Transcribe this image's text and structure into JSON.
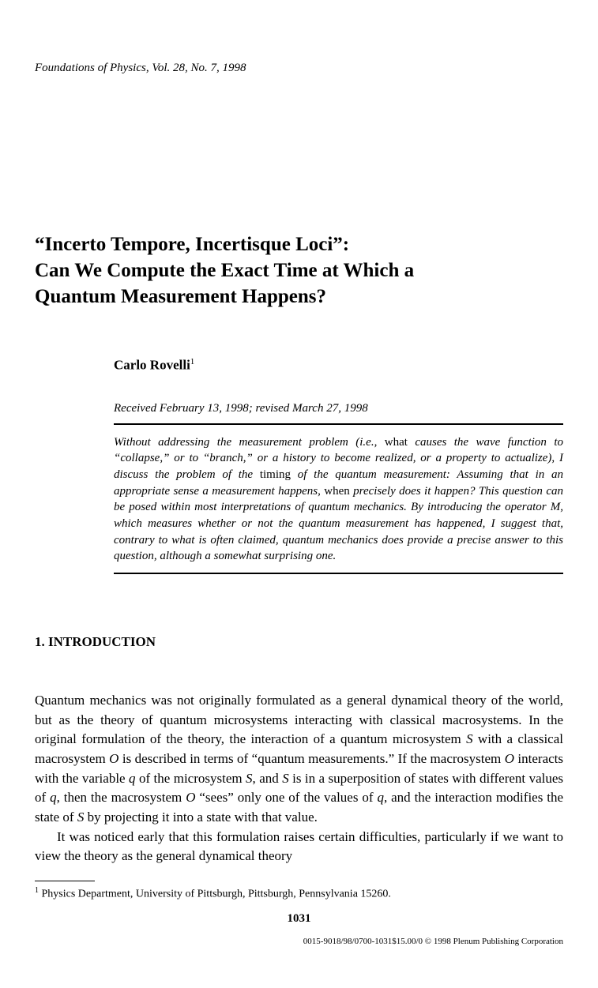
{
  "journal_header": "Foundations of Physics, Vol. 28, No. 7, 1998",
  "title_line1": "“Incerto Tempore, Incertisque Loci”:",
  "title_line2": "Can We Compute the Exact Time at Which a",
  "title_line3": "Quantum Measurement Happens?",
  "author": "Carlo Rovelli",
  "author_affil_mark": "1",
  "received": "Received February 13, 1998; revised March 27, 1998",
  "abstract_parts": {
    "p1": "Without addressing the measurement problem (i.e., ",
    "r1": "what ",
    "p2": "causes the wave function to “collapse,” or to “branch,” or a history to become realized, or a property to actualize), I discuss the problem of the ",
    "r2": "timing ",
    "p3": "of the quantum measurement: Assuming that in an appropriate sense a measurement happens, ",
    "r3": "when ",
    "p4": "precisely does it happen? This question can be posed within most interpretations of quantum mechanics. By introducing the operator M, which measures whether or not the quantum measurement has happened, I suggest that, contrary to what is often claimed, quantum mechanics does provide a precise answer to this question, although a somewhat surprising one."
  },
  "section1_head": "1.  INTRODUCTION",
  "body": {
    "p1a": "Quantum mechanics was not originally formulated as a general dynamical theory of the world, but as the theory of quantum microsystems interacting with classical macrosystems. In the original formulation of the theory, the interaction of a quantum microsystem ",
    "s": "S",
    "p1b": " with a classical macrosystem ",
    "o": "O",
    "p1c": " is described in terms of “quantum measurements.” If the macrosystem ",
    "p1d": " interacts with the variable ",
    "q": "q",
    "p1e": " of the microsystem ",
    "p1f": ", and ",
    "p1g": " is in a superposition of states with different values of ",
    "p1h": ", then the macrosystem ",
    "p1i": " “sees” only one of the values of ",
    "p1j": ", and the interaction modifies the state of ",
    "p1k": " by projecting it into a state with that value.",
    "p2": "It was noticed early that this formulation raises certain difficulties, particularly if we want to view the theory as the general dynamical theory"
  },
  "footnote_mark": "1",
  "footnote_text": " Physics Department, University of Pittsburgh, Pittsburgh, Pennsylvania 15260.",
  "page_number": "1031",
  "copyright_line": "0015-9018/98/0700-1031$15.00/0 © 1998 Plenum Publishing Corporation"
}
